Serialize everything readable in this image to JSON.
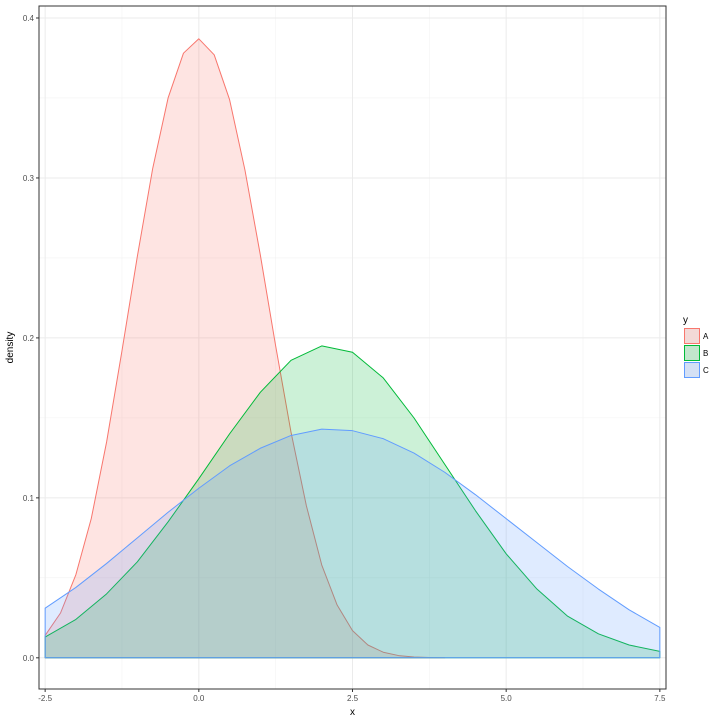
{
  "chart_data": {
    "type": "area",
    "title": "",
    "xlabel": "x",
    "ylabel": "density",
    "xlim": [
      -2.6,
      7.6
    ],
    "ylim": [
      -0.0195,
      0.4075
    ],
    "x_ticks": [
      -2.5,
      0.0,
      2.5,
      5.0,
      7.5
    ],
    "x_tick_labels": [
      "-2.5",
      "0.0",
      "2.5",
      "5.0",
      "7.5"
    ],
    "y_ticks": [
      0.0,
      0.1,
      0.2,
      0.3,
      0.4
    ],
    "y_tick_labels": [
      "0.0",
      "0.1",
      "0.2",
      "0.3",
      "0.4"
    ],
    "grid": true,
    "legend": {
      "title": "y",
      "position": "right"
    },
    "series": [
      {
        "name": "A",
        "color": "#F8766D",
        "fill": "#F8766D",
        "x": [
          -2.5,
          -2.25,
          -2.0,
          -1.75,
          -1.5,
          -1.25,
          -1.0,
          -0.75,
          -0.5,
          -0.25,
          0.0,
          0.25,
          0.5,
          0.75,
          1.0,
          1.25,
          1.5,
          1.75,
          2.0,
          2.25,
          2.5,
          2.75,
          3.0,
          3.25,
          3.5,
          3.75,
          4.0
        ],
        "values": [
          0.014,
          0.028,
          0.052,
          0.087,
          0.135,
          0.192,
          0.251,
          0.306,
          0.35,
          0.378,
          0.387,
          0.377,
          0.349,
          0.305,
          0.252,
          0.195,
          0.141,
          0.095,
          0.058,
          0.033,
          0.017,
          0.008,
          0.0035,
          0.0014,
          0.0005,
          0.0002,
          0.0
        ]
      },
      {
        "name": "B",
        "color": "#00BA38",
        "fill": "#00BA38",
        "x": [
          -2.5,
          -2.0,
          -1.5,
          -1.0,
          -0.5,
          0.0,
          0.5,
          1.0,
          1.5,
          2.0,
          2.5,
          3.0,
          3.5,
          4.0,
          4.5,
          5.0,
          5.5,
          6.0,
          6.5,
          7.0,
          7.5
        ],
        "values": [
          0.013,
          0.024,
          0.04,
          0.06,
          0.085,
          0.112,
          0.14,
          0.166,
          0.186,
          0.195,
          0.191,
          0.175,
          0.15,
          0.121,
          0.092,
          0.065,
          0.043,
          0.026,
          0.015,
          0.008,
          0.004
        ]
      },
      {
        "name": "C",
        "color": "#619CFF",
        "fill": "#619CFF",
        "x": [
          -2.5,
          -2.0,
          -1.5,
          -1.0,
          -0.5,
          0.0,
          0.5,
          1.0,
          1.5,
          2.0,
          2.5,
          3.0,
          3.5,
          4.0,
          4.5,
          5.0,
          5.5,
          6.0,
          6.5,
          7.0,
          7.5
        ],
        "values": [
          0.031,
          0.044,
          0.059,
          0.075,
          0.091,
          0.106,
          0.12,
          0.131,
          0.139,
          0.143,
          0.142,
          0.137,
          0.128,
          0.116,
          0.102,
          0.087,
          0.072,
          0.057,
          0.043,
          0.03,
          0.019
        ]
      }
    ]
  }
}
